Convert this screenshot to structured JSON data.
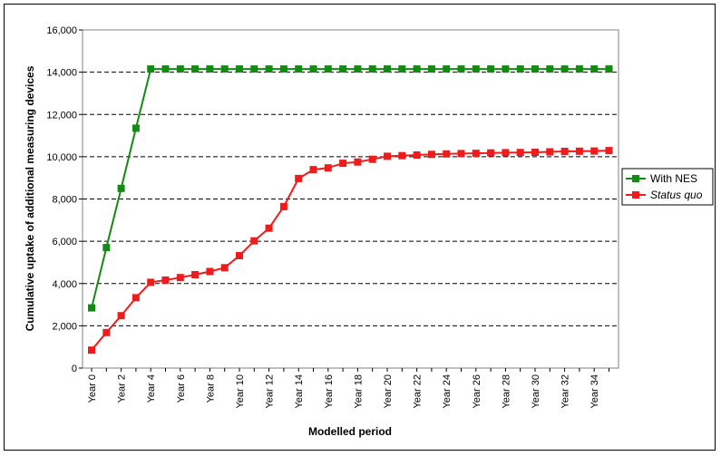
{
  "chart_data": {
    "type": "line",
    "xlabel": "Modelled period",
    "ylabel": "Cumulative uptake of additional measuring devices",
    "ylim": [
      0,
      16000
    ],
    "yticks": [
      "0",
      "2,000",
      "4,000",
      "6,000",
      "8,000",
      "10,000",
      "12,000",
      "14,000",
      "16,000"
    ],
    "ytick_values": [
      0,
      2000,
      4000,
      6000,
      8000,
      10000,
      12000,
      14000,
      16000
    ],
    "x": [
      0,
      1,
      2,
      3,
      4,
      5,
      6,
      7,
      8,
      9,
      10,
      11,
      12,
      13,
      14,
      15,
      16,
      17,
      18,
      19,
      20,
      21,
      22,
      23,
      24,
      25,
      26,
      27,
      28,
      29,
      30,
      31,
      32,
      33,
      34,
      35
    ],
    "xticks": [
      "Year 0",
      "Year 2",
      "Year 4",
      "Year 6",
      "Year 8",
      "Year 10",
      "Year 12",
      "Year 14",
      "Year 16",
      "Year 18",
      "Year 20",
      "Year 22",
      "Year 24",
      "Year 26",
      "Year 28",
      "Year 30",
      "Year 32",
      "Year 34"
    ],
    "xtick_values": [
      0,
      2,
      4,
      6,
      8,
      10,
      12,
      14,
      16,
      18,
      20,
      22,
      24,
      26,
      28,
      30,
      32,
      34
    ],
    "grid": "horizontal dashed",
    "legend_position": "right",
    "series": [
      {
        "name": "With NES",
        "italic": false,
        "color": "#138a13",
        "values": [
          2850,
          5700,
          8500,
          11350,
          14150,
          14150,
          14150,
          14150,
          14150,
          14150,
          14150,
          14150,
          14150,
          14150,
          14150,
          14150,
          14150,
          14150,
          14150,
          14150,
          14150,
          14150,
          14150,
          14150,
          14150,
          14150,
          14150,
          14150,
          14150,
          14150,
          14150,
          14150,
          14150,
          14150,
          14150,
          14150
        ]
      },
      {
        "name": "Status quo",
        "italic": true,
        "color": "#ee1c1c",
        "values": [
          850,
          1680,
          2480,
          3330,
          4060,
          4160,
          4280,
          4420,
          4570,
          4750,
          5320,
          6020,
          6620,
          7640,
          8970,
          9390,
          9470,
          9690,
          9750,
          9880,
          10020,
          10050,
          10080,
          10110,
          10130,
          10150,
          10160,
          10180,
          10190,
          10200,
          10210,
          10230,
          10250,
          10260,
          10270,
          10290
        ]
      }
    ]
  }
}
